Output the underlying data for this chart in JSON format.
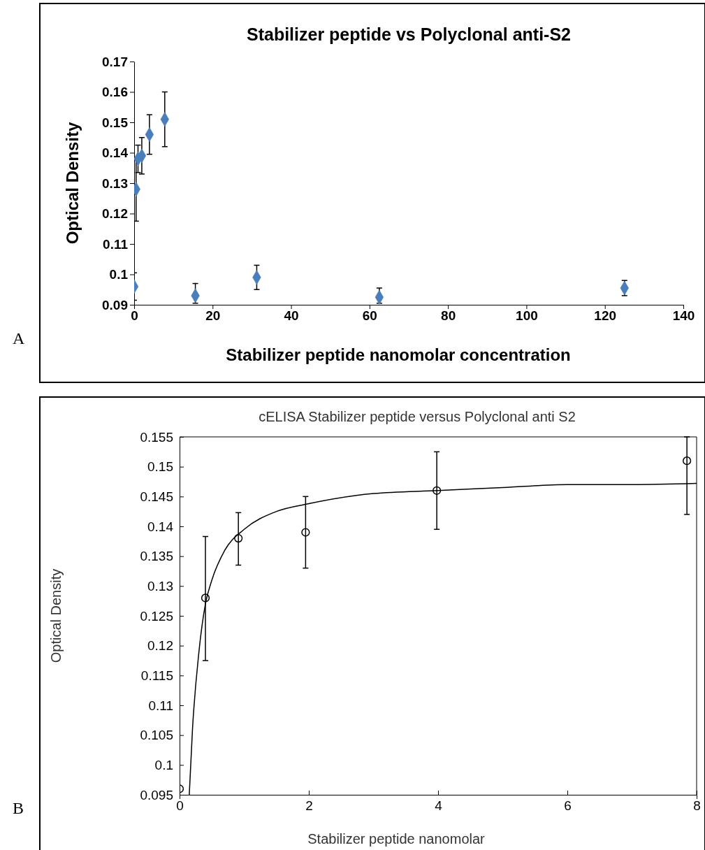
{
  "chart_data": [
    {
      "type": "scatter",
      "title": "Stabilizer peptide vs Polyclonal anti-S2",
      "xlabel": "Stabilizer peptide nanomolar concentration",
      "ylabel": "Optical Density",
      "annotations": [
        "A"
      ],
      "marker": "diamond",
      "grid": false,
      "xlim": [
        0,
        140
      ],
      "xticks": [
        0,
        20,
        40,
        60,
        80,
        100,
        120,
        140
      ],
      "ylim": [
        0.09,
        0.17
      ],
      "yticks": [
        0.09,
        0.1,
        0.11,
        0.12,
        0.13,
        0.14,
        0.15,
        0.16,
        0.17
      ],
      "series": [
        {
          "color": "#4a7ebb",
          "x": [
            0,
            0.49,
            0.98,
            1.95,
            3.9,
            7.8,
            15.6,
            31.25,
            62.5,
            125
          ],
          "values": [
            0.096,
            0.128,
            0.138,
            0.139,
            0.146,
            0.151,
            0.093,
            0.099,
            0.0925,
            0.0955
          ],
          "errors": [
            [
              0.0915,
              0.1005
            ],
            [
              0.1175,
              0.1385
            ],
            [
              0.1335,
              0.1425
            ],
            [
              0.133,
              0.145
            ],
            [
              0.1395,
              0.1525
            ],
            [
              0.142,
              0.16
            ],
            [
              0.0905,
              0.097
            ],
            [
              0.095,
              0.103
            ],
            [
              0.0905,
              0.0955
            ],
            [
              0.093,
              0.098
            ]
          ]
        }
      ]
    },
    {
      "type": "scatter",
      "title": "cELISA Stabilizer peptide versus Polyclonal anti S2",
      "xlabel": "Stabilizer peptide nanomolar",
      "ylabel": "Optical Density",
      "annotations": [
        "B"
      ],
      "marker": "circle",
      "grid": false,
      "xlim": [
        0,
        8
      ],
      "xticks": [
        0,
        2,
        4,
        6,
        8
      ],
      "ylim": [
        0.095,
        0.155
      ],
      "yticks": [
        0.095,
        0.1,
        0.105,
        0.11,
        0.115,
        0.12,
        0.125,
        0.13,
        0.135,
        0.14,
        0.145,
        0.15,
        0.155
      ],
      "series": [
        {
          "color": "#000000",
          "x": [
            0,
            0.4,
            0.91,
            1.95,
            3.98,
            7.85
          ],
          "values": [
            0.096,
            0.128,
            0.138,
            0.139,
            0.146,
            0.151
          ],
          "errors": [
            null,
            [
              0.1175,
              0.1383
            ],
            [
              0.1335,
              0.1423
            ],
            [
              0.133,
              0.145
            ],
            [
              0.1395,
              0.1525
            ],
            [
              0.142,
              0.155
            ]
          ]
        },
        {
          "type": "line",
          "color": "#000000",
          "marker": "none",
          "x": [
            0.15,
            0.2,
            0.3,
            0.4,
            0.5,
            0.7,
            1,
            1.5,
            2,
            3,
            4,
            5,
            6,
            7,
            8
          ],
          "values": [
            0.095,
            0.106,
            0.119,
            0.127,
            0.131,
            0.136,
            0.1395,
            0.1425,
            0.1438,
            0.1455,
            0.146,
            0.1465,
            0.147,
            0.147,
            0.1472
          ]
        }
      ]
    }
  ]
}
